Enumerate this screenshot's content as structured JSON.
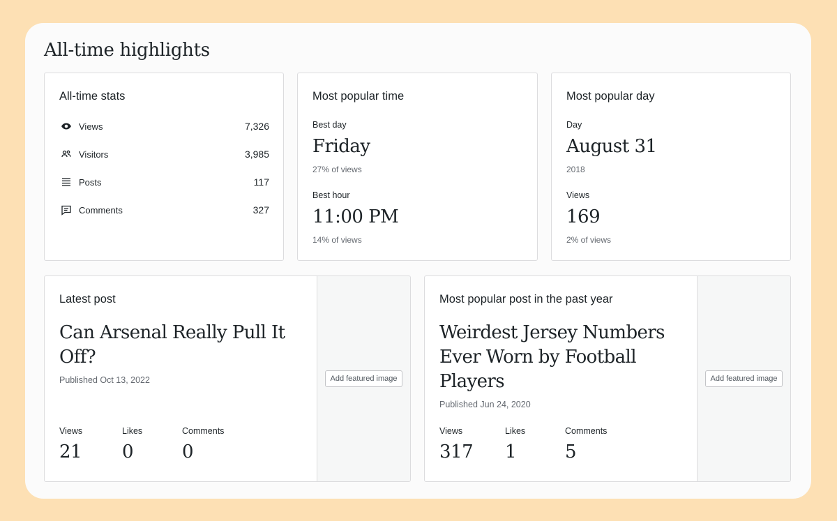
{
  "page_title": "All-time highlights",
  "stats_card": {
    "title": "All-time stats",
    "rows": [
      {
        "icon": "eye-icon",
        "label": "Views",
        "value": "7,326"
      },
      {
        "icon": "people-icon",
        "label": "Visitors",
        "value": "3,985"
      },
      {
        "icon": "posts-icon",
        "label": "Posts",
        "value": "117"
      },
      {
        "icon": "comment-icon",
        "label": "Comments",
        "value": "327"
      }
    ]
  },
  "popular_time_card": {
    "title": "Most popular time",
    "best_day_label": "Best day",
    "best_day_value": "Friday",
    "best_day_note": "27% of views",
    "best_hour_label": "Best hour",
    "best_hour_value": "11:00 PM",
    "best_hour_note": "14% of views"
  },
  "popular_day_card": {
    "title": "Most popular day",
    "day_label": "Day",
    "day_value": "August 31",
    "day_note": "2018",
    "views_label": "Views",
    "views_value": "169",
    "views_note": "2% of views"
  },
  "latest_post_card": {
    "title": "Latest post",
    "post_title": "Can Arsenal Really Pull It Off?",
    "published": "Published Oct 13, 2022",
    "metrics": [
      {
        "label": "Views",
        "value": "21"
      },
      {
        "label": "Likes",
        "value": "0"
      },
      {
        "label": "Comments",
        "value": "0"
      }
    ],
    "add_image_label": "Add featured image"
  },
  "popular_post_card": {
    "title": "Most popular post in the past year",
    "post_title": "Weirdest Jersey Numbers Ever Worn by Football Players",
    "published": "Published Jun 24, 2020",
    "metrics": [
      {
        "label": "Views",
        "value": "317"
      },
      {
        "label": "Likes",
        "value": "1"
      },
      {
        "label": "Comments",
        "value": "5"
      }
    ],
    "add_image_label": "Add featured image"
  },
  "colors": {
    "background": "#fde0b4",
    "panel": "#fbfbfb",
    "card_border": "#dcdcde",
    "text": "#1d2327",
    "muted_text": "#646970",
    "image_slot": "#f6f7f7"
  }
}
